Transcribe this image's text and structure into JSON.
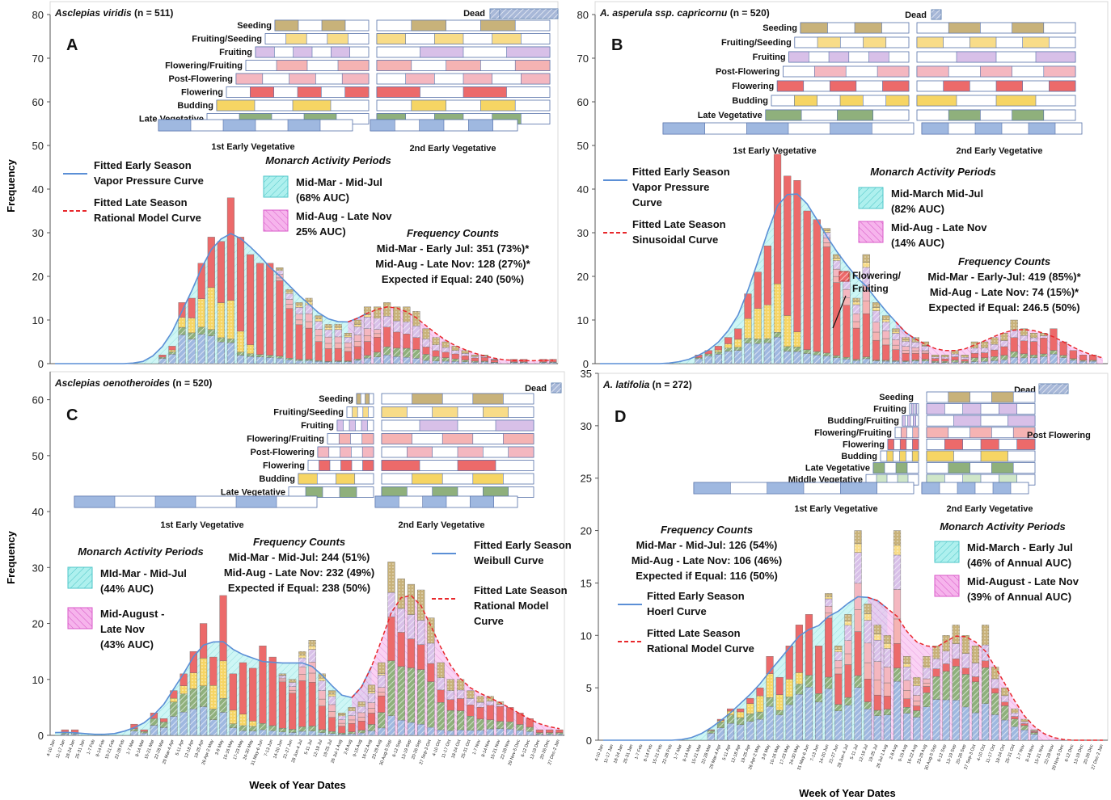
{
  "y_axis_label": "Frequency",
  "x_axis_label": "Week of Year Dates",
  "week_labels": [
    "4-10 Jan",
    "11-17 Jan",
    "18-24 Jan",
    "25-31 Jan",
    "1-7 Feb",
    "8-14 Feb",
    "15-21 Feb",
    "22-28 Feb",
    "1-7 Mar",
    "8-14 Mar",
    "15-21 Mar",
    "22-28 Mar",
    "29 Mar-4 Apr",
    "5-11 Apr",
    "12-18 Apr",
    "19-25 Apr",
    "26 Apr-2 May",
    "3-9 May",
    "10-16 May",
    "17-23 May",
    "24-30 May",
    "31 May-6 Jun",
    "7-13 Jun",
    "14-20 Jun",
    "21-27 Jun",
    "28 Jun-4 Jul",
    "5-11 Jul",
    "12-18 Jul",
    "19-25 Jul",
    "26 Jul-1 Aug",
    "2-8 Aug",
    "9-15 Aug",
    "16-22 Aug",
    "23-29 Aug",
    "30 Aug-5 Sep",
    "6-12 Sep",
    "13-19 Sep",
    "20-26 Sep",
    "27 Sep-3 Oct",
    "4-10 Oct",
    "11-17 Oct",
    "18-24 Oct",
    "25-31 Oct",
    "1-7 Nov",
    "8-14 Nov",
    "15-21 Nov",
    "22-28 Nov",
    "29 Nov-5 Dec",
    "6-12 Dec",
    "13-19 Dec",
    "20-26 Dec",
    "27 Dec-2 Jan"
  ],
  "stage_colors": {
    "early_veg": "#9fb8e0",
    "middle_veg": "#cfe6c8",
    "late_veg": "#8fb07c",
    "budding": "#f6d564",
    "flowering": "#ec6a6a",
    "flowering_fruiting": "#f5b3b3",
    "post_flowering": "#f4b7c0",
    "fruiting": "#d8c0e8",
    "fruiting_seeding": "#f8dc88",
    "seeding": "#c8b27a",
    "dead": "#a8b8d8",
    "early_curve": "#5b8fd6",
    "late_curve": "#e8282c",
    "early_fill": "#aef0ee",
    "late_fill": "#f6b4ec"
  },
  "panels": [
    {
      "letter": "A",
      "species": "Asclepias viridis",
      "n_text": "(n = 511)",
      "dead_label": "Dead",
      "phenology": {
        "rows": [
          "Seeding",
          "Fruiting/Seeding",
          "Fruiting",
          "Flowering/Fruiting",
          "Post-Flowering",
          "Flowering",
          "Budding",
          "Late Vegetative"
        ],
        "veg_labels": [
          "1st Early Vegetative",
          "2nd Early Vegetative"
        ]
      },
      "legend": {
        "curve1": [
          "Fitted Early Season",
          "Vapor Pressure Curve"
        ],
        "curve2": [
          "Fitted Late Season",
          "Rational Model Curve"
        ],
        "activity_title": "Monarch Activity Periods",
        "box1": [
          "Mid-Mar - Mid-Jul",
          "(68% AUC)"
        ],
        "box2": [
          "Mid-Aug - Late Nov",
          "25% AUC)"
        ]
      },
      "freq": {
        "title": "Frequency Counts",
        "lines": [
          "Mid-Mar - Early Jul: 351 (73%)*",
          "Mid-Aug - Late Nov: 128 (27%)*",
          "Expected if Equal: 240 (50%)"
        ]
      },
      "chart_data": {
        "type": "bar",
        "ylim": [
          0,
          80
        ],
        "yticks": [
          0,
          10,
          20,
          30,
          40,
          50,
          60,
          70,
          80
        ],
        "values": [
          0,
          0,
          0,
          0,
          0,
          0,
          0,
          0,
          0,
          0,
          0,
          2,
          4,
          14,
          15,
          23,
          29,
          28,
          38,
          29,
          25,
          23,
          23,
          22,
          17,
          14,
          15,
          11,
          9,
          9,
          7,
          10,
          13,
          13,
          14,
          13,
          13,
          12,
          8,
          6,
          5,
          4,
          3,
          2,
          2,
          1,
          0,
          1,
          1,
          0,
          1,
          1
        ]
      }
    },
    {
      "letter": "B",
      "species": "A. asperula ssp. capricornu",
      "n_text": "(n = 520)",
      "dead_label": "Dead",
      "phenology": {
        "rows": [
          "Seeding",
          "Fruiting/Seeding",
          "Fruiting",
          "Post-Flowering",
          "Flowering",
          "Budding",
          "Late Vegetative"
        ],
        "veg_labels": [
          "1st Early Vegetative",
          "2nd Early Vegetative"
        ]
      },
      "legend": {
        "curve1": [
          "Fitted Early Season",
          "Vapor Pressure",
          "Curve"
        ],
        "curve2": [
          "Fitted Late Season",
          "Sinusoidal Curve"
        ],
        "activity_title": "Monarch Activity Periods",
        "box1": [
          "Mid-March Mid-Jul",
          "(82% AUC)"
        ],
        "box2": [
          "Mid-Aug - Late Nov",
          "(14% AUC)"
        ]
      },
      "annotation": [
        "Flowering/",
        "Fruiting"
      ],
      "freq": {
        "title": "Frequency Counts",
        "lines": [
          "Mid-Mar - Early-Jul: 419 (85%)*",
          "Mid-Aug - Late Nov: 74 (15%)*",
          "Expected if Equal: 246.5 (50%)"
        ]
      },
      "chart_data": {
        "type": "bar",
        "ylim": [
          0,
          80
        ],
        "yticks": [
          0,
          10,
          20,
          30,
          40,
          50,
          60,
          70,
          80
        ],
        "values": [
          0,
          0,
          0,
          0,
          0,
          0,
          0,
          0,
          0,
          0,
          2,
          3,
          4,
          6,
          8,
          16,
          21,
          27,
          48,
          43,
          42,
          35,
          33,
          31,
          25,
          21,
          15,
          25,
          14,
          11,
          8,
          6,
          6,
          5,
          2,
          2,
          3,
          2,
          5,
          5,
          6,
          7,
          10,
          8,
          7,
          7,
          8,
          5,
          3,
          2,
          2,
          0
        ]
      }
    },
    {
      "letter": "C",
      "species": "Asclepias oenotheroides",
      "n_text": "(n = 520)",
      "dead_label": "Dead",
      "phenology": {
        "rows": [
          "Seeding",
          "Fruiting/Seeding",
          "Fruiting",
          "Flowering/Fruiting",
          "Post-Flowering",
          "Flowering",
          "Budding",
          "Late Vegetative"
        ],
        "veg_labels": [
          "1st Early Vegetative",
          "2nd Early Vegetative"
        ]
      },
      "legend": {
        "curve1": [
          "Fitted Early Season",
          "Weibull Curve"
        ],
        "curve2": [
          "Fitted Late Season",
          "Rational Model",
          "Curve"
        ],
        "activity_title": "Monarch Activity Periods",
        "box1": [
          "MId-Mar - Mid-Jul",
          "(44% AUC)"
        ],
        "box2": [
          "Mid-August -",
          "Late Nov",
          "(43% AUC)"
        ]
      },
      "freq": {
        "title": "Frequency Counts",
        "lines": [
          "Mid-Mar - Mid-Jul: 244 (51%)",
          "Mid-Aug - Late Nov: 232 (49%)",
          "Expected if Equal: 238 (50%)"
        ]
      },
      "chart_data": {
        "type": "bar",
        "ylim": [
          0,
          65
        ],
        "yticks": [
          0,
          10,
          20,
          30,
          40,
          50,
          60
        ],
        "values": [
          0,
          1,
          1,
          0,
          0,
          0,
          0,
          0,
          2,
          1,
          4,
          3,
          8,
          11,
          15,
          20,
          14,
          25,
          11,
          13,
          12,
          16,
          14,
          11,
          10,
          15,
          17,
          11,
          8,
          4,
          5,
          6,
          9,
          13,
          31,
          28,
          27,
          26,
          21,
          13,
          10,
          10,
          8,
          7,
          7,
          6,
          5,
          4,
          3,
          1,
          1,
          1
        ]
      }
    },
    {
      "letter": "D",
      "species": "A. latifolia",
      "n_text": "(n = 272)",
      "dead_label": "Dead",
      "phenology": {
        "rows": [
          "Seeding",
          "Fruiting",
          "Budding/Fruiting",
          "Flowering/Fruiting",
          "Flowering",
          "Budding",
          "Late Vegetative",
          "Middle Vegetative"
        ],
        "post_label": "Post Flowering",
        "veg_labels": [
          "1st Early Vegetative",
          "2nd Early Vegetative"
        ]
      },
      "legend": {
        "curve1": [
          "Fitted Early Season",
          "Hoerl Curve"
        ],
        "curve2": [
          "Fitted Late Season",
          "Rational Model Curve"
        ],
        "activity_title": "Monarch Activity Periods",
        "box1": [
          "Mid-March - Early Jul",
          "(46% of Annual AUC)"
        ],
        "box2": [
          "Mid-August - Late Nov",
          "(39% of Annual AUC)"
        ]
      },
      "freq": {
        "title": "Frequency Counts",
        "lines": [
          "Mid-Mar - Mid-Jul: 126 (54%)",
          "Mid-Aug - Late Nov: 106 (46%)",
          "Expected if Equal: 116 (50%)"
        ]
      },
      "chart_data": {
        "type": "bar",
        "ylim": [
          0,
          35
        ],
        "yticks": [
          0,
          5,
          10,
          15,
          20,
          25,
          30,
          35
        ],
        "values": [
          0,
          0,
          0,
          0,
          0,
          0,
          0,
          0,
          0,
          0,
          0,
          1,
          2,
          3,
          3,
          4,
          5,
          8,
          6,
          9,
          11,
          12,
          9,
          14,
          9,
          12,
          20,
          13,
          11,
          10,
          20,
          8,
          6,
          8,
          9,
          10,
          11,
          10,
          9,
          11,
          7,
          5,
          3,
          2,
          1,
          0,
          0,
          0,
          0,
          0,
          0,
          0
        ]
      }
    }
  ]
}
